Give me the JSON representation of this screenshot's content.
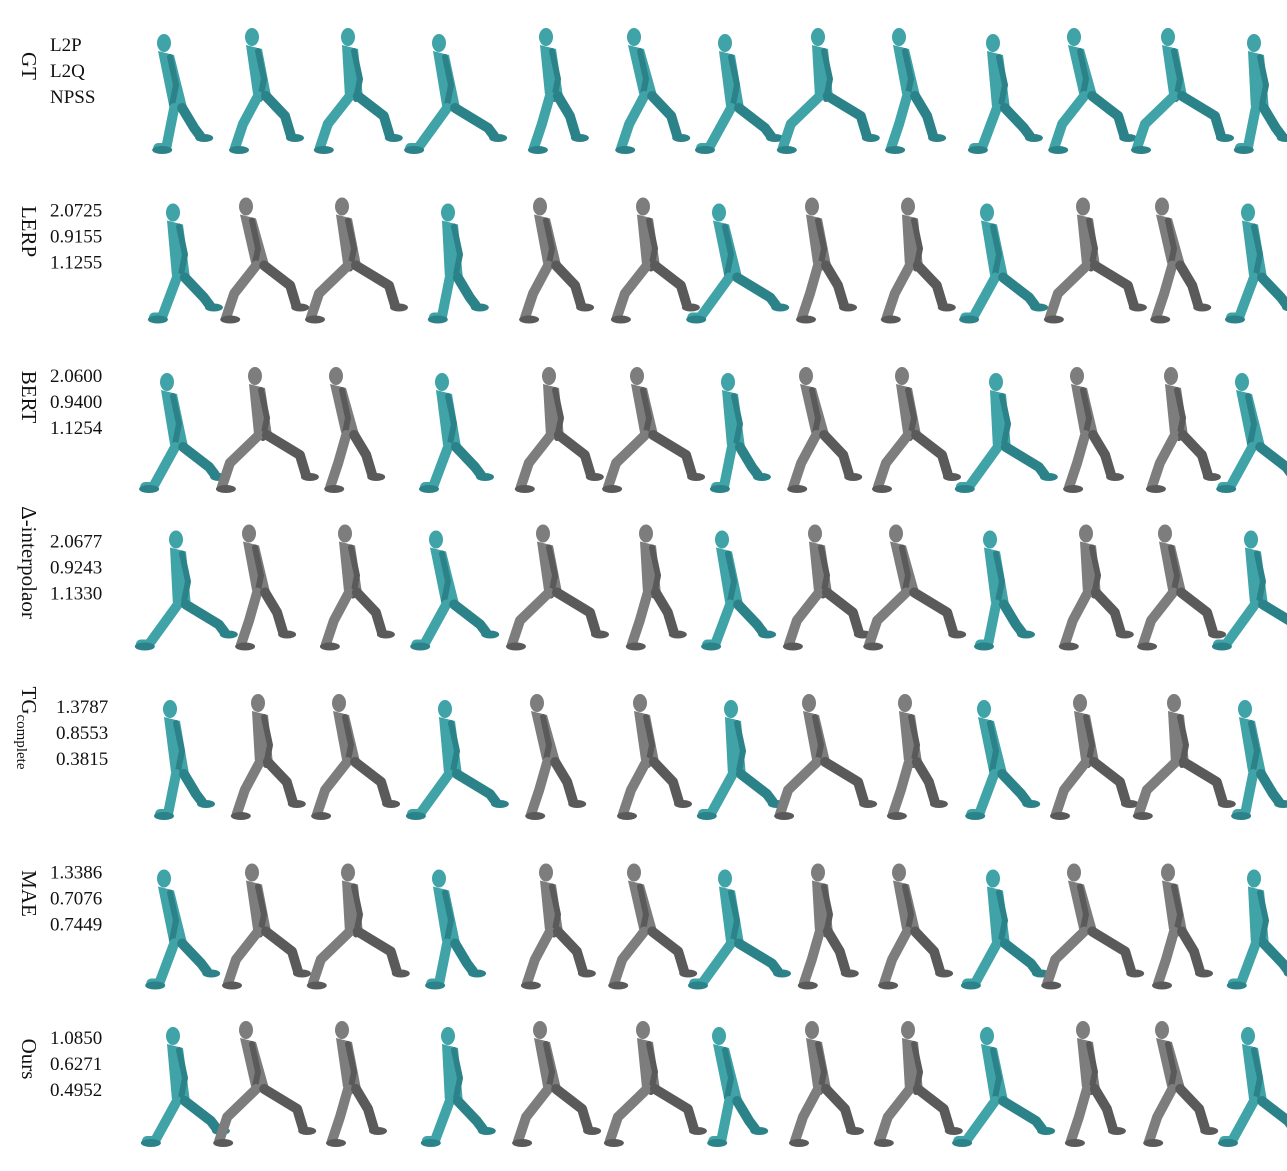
{
  "rows": [
    {
      "method": "GT",
      "metrics": [
        "L2P",
        "L2Q",
        "NPSS"
      ]
    },
    {
      "method": "LERP",
      "metrics": [
        "2.0725",
        "0.9155",
        "1.1255"
      ]
    },
    {
      "method": "BERT",
      "metrics": [
        "2.0600",
        "0.9400",
        "1.1254"
      ]
    },
    {
      "method": "Δ-interpolaor",
      "metrics": [
        "2.0677",
        "0.9243",
        "1.1330"
      ]
    },
    {
      "method": "TG",
      "subscript": "complete",
      "metrics": [
        "1.3787",
        "0.8553",
        "0.3815"
      ]
    },
    {
      "method": "MAE",
      "metrics": [
        "1.3386",
        "0.7076",
        "0.7449"
      ]
    },
    {
      "method": "Ours",
      "metrics": [
        "1.0850",
        "0.6271",
        "0.4952"
      ]
    }
  ]
}
